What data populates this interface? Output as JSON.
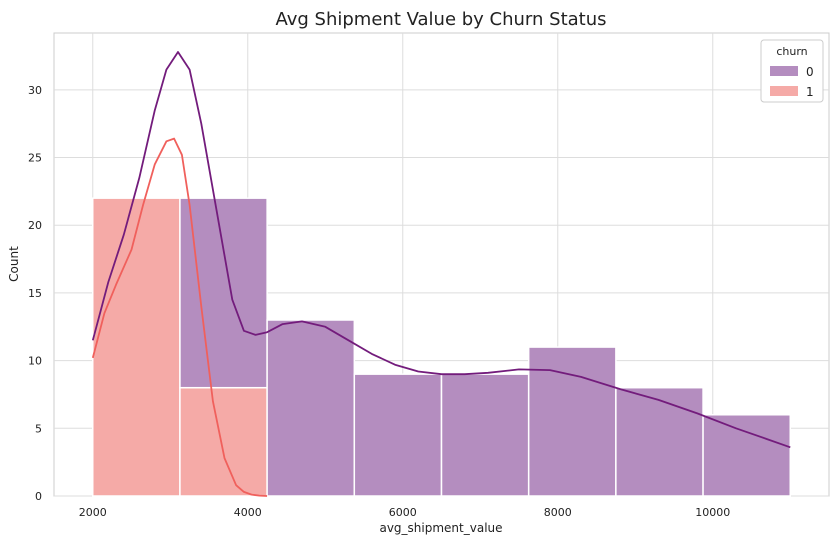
{
  "chart_data": {
    "type": "histogram",
    "title": "Avg Shipment Value by Churn Status",
    "xlabel": "avg_shipment_value",
    "ylabel": "Count",
    "xlim": [
      1500,
      11500
    ],
    "ylim": [
      0,
      34.2
    ],
    "x_ticks": [
      2000,
      4000,
      6000,
      8000,
      10000
    ],
    "y_ticks": [
      0,
      5,
      10,
      15,
      20,
      25,
      30
    ],
    "grid": true,
    "stacked": true,
    "legend": {
      "title": "churn",
      "placement": "top-right"
    },
    "bin_edges": [
      2000,
      3125,
      4250,
      5375,
      6500,
      7625,
      8750,
      9875,
      11000
    ],
    "series": [
      {
        "name": "0",
        "color": "#b48dbf",
        "line_color": "#731c7c",
        "counts": [
          0,
          14,
          13,
          9,
          9,
          11,
          8,
          6
        ],
        "kde": {
          "x": [
            2000,
            2200,
            2400,
            2600,
            2800,
            2950,
            3100,
            3250,
            3400,
            3600,
            3800,
            3950,
            4100,
            4250,
            4450,
            4700,
            5000,
            5300,
            5600,
            5900,
            6200,
            6500,
            6800,
            7100,
            7500,
            7900,
            8300,
            8800,
            9300,
            9800,
            10300,
            10700,
            11000
          ],
          "y": [
            11.5,
            15.8,
            19.3,
            23.5,
            28.5,
            31.5,
            32.8,
            31.5,
            27.5,
            21,
            14.5,
            12.2,
            11.9,
            12.1,
            12.7,
            12.9,
            12.5,
            11.5,
            10.5,
            9.7,
            9.2,
            9.0,
            9.0,
            9.1,
            9.35,
            9.3,
            8.8,
            7.9,
            7.1,
            6.1,
            5.0,
            4.2,
            3.6
          ]
        }
      },
      {
        "name": "1",
        "color": "#f5aaa7",
        "line_color": "#f0605c",
        "counts": [
          22,
          8,
          0,
          0,
          0,
          0,
          0,
          0
        ],
        "kde": {
          "x": [
            2000,
            2150,
            2300,
            2500,
            2650,
            2800,
            2950,
            3050,
            3150,
            3250,
            3400,
            3550,
            3700,
            3850,
            3950,
            4050,
            4150,
            4250
          ],
          "y": [
            10.2,
            13.5,
            15.6,
            18.2,
            21.5,
            24.5,
            26.2,
            26.4,
            25.2,
            21.5,
            14,
            7,
            2.8,
            0.8,
            0.3,
            0.1,
            0.03,
            0
          ]
        }
      }
    ]
  }
}
